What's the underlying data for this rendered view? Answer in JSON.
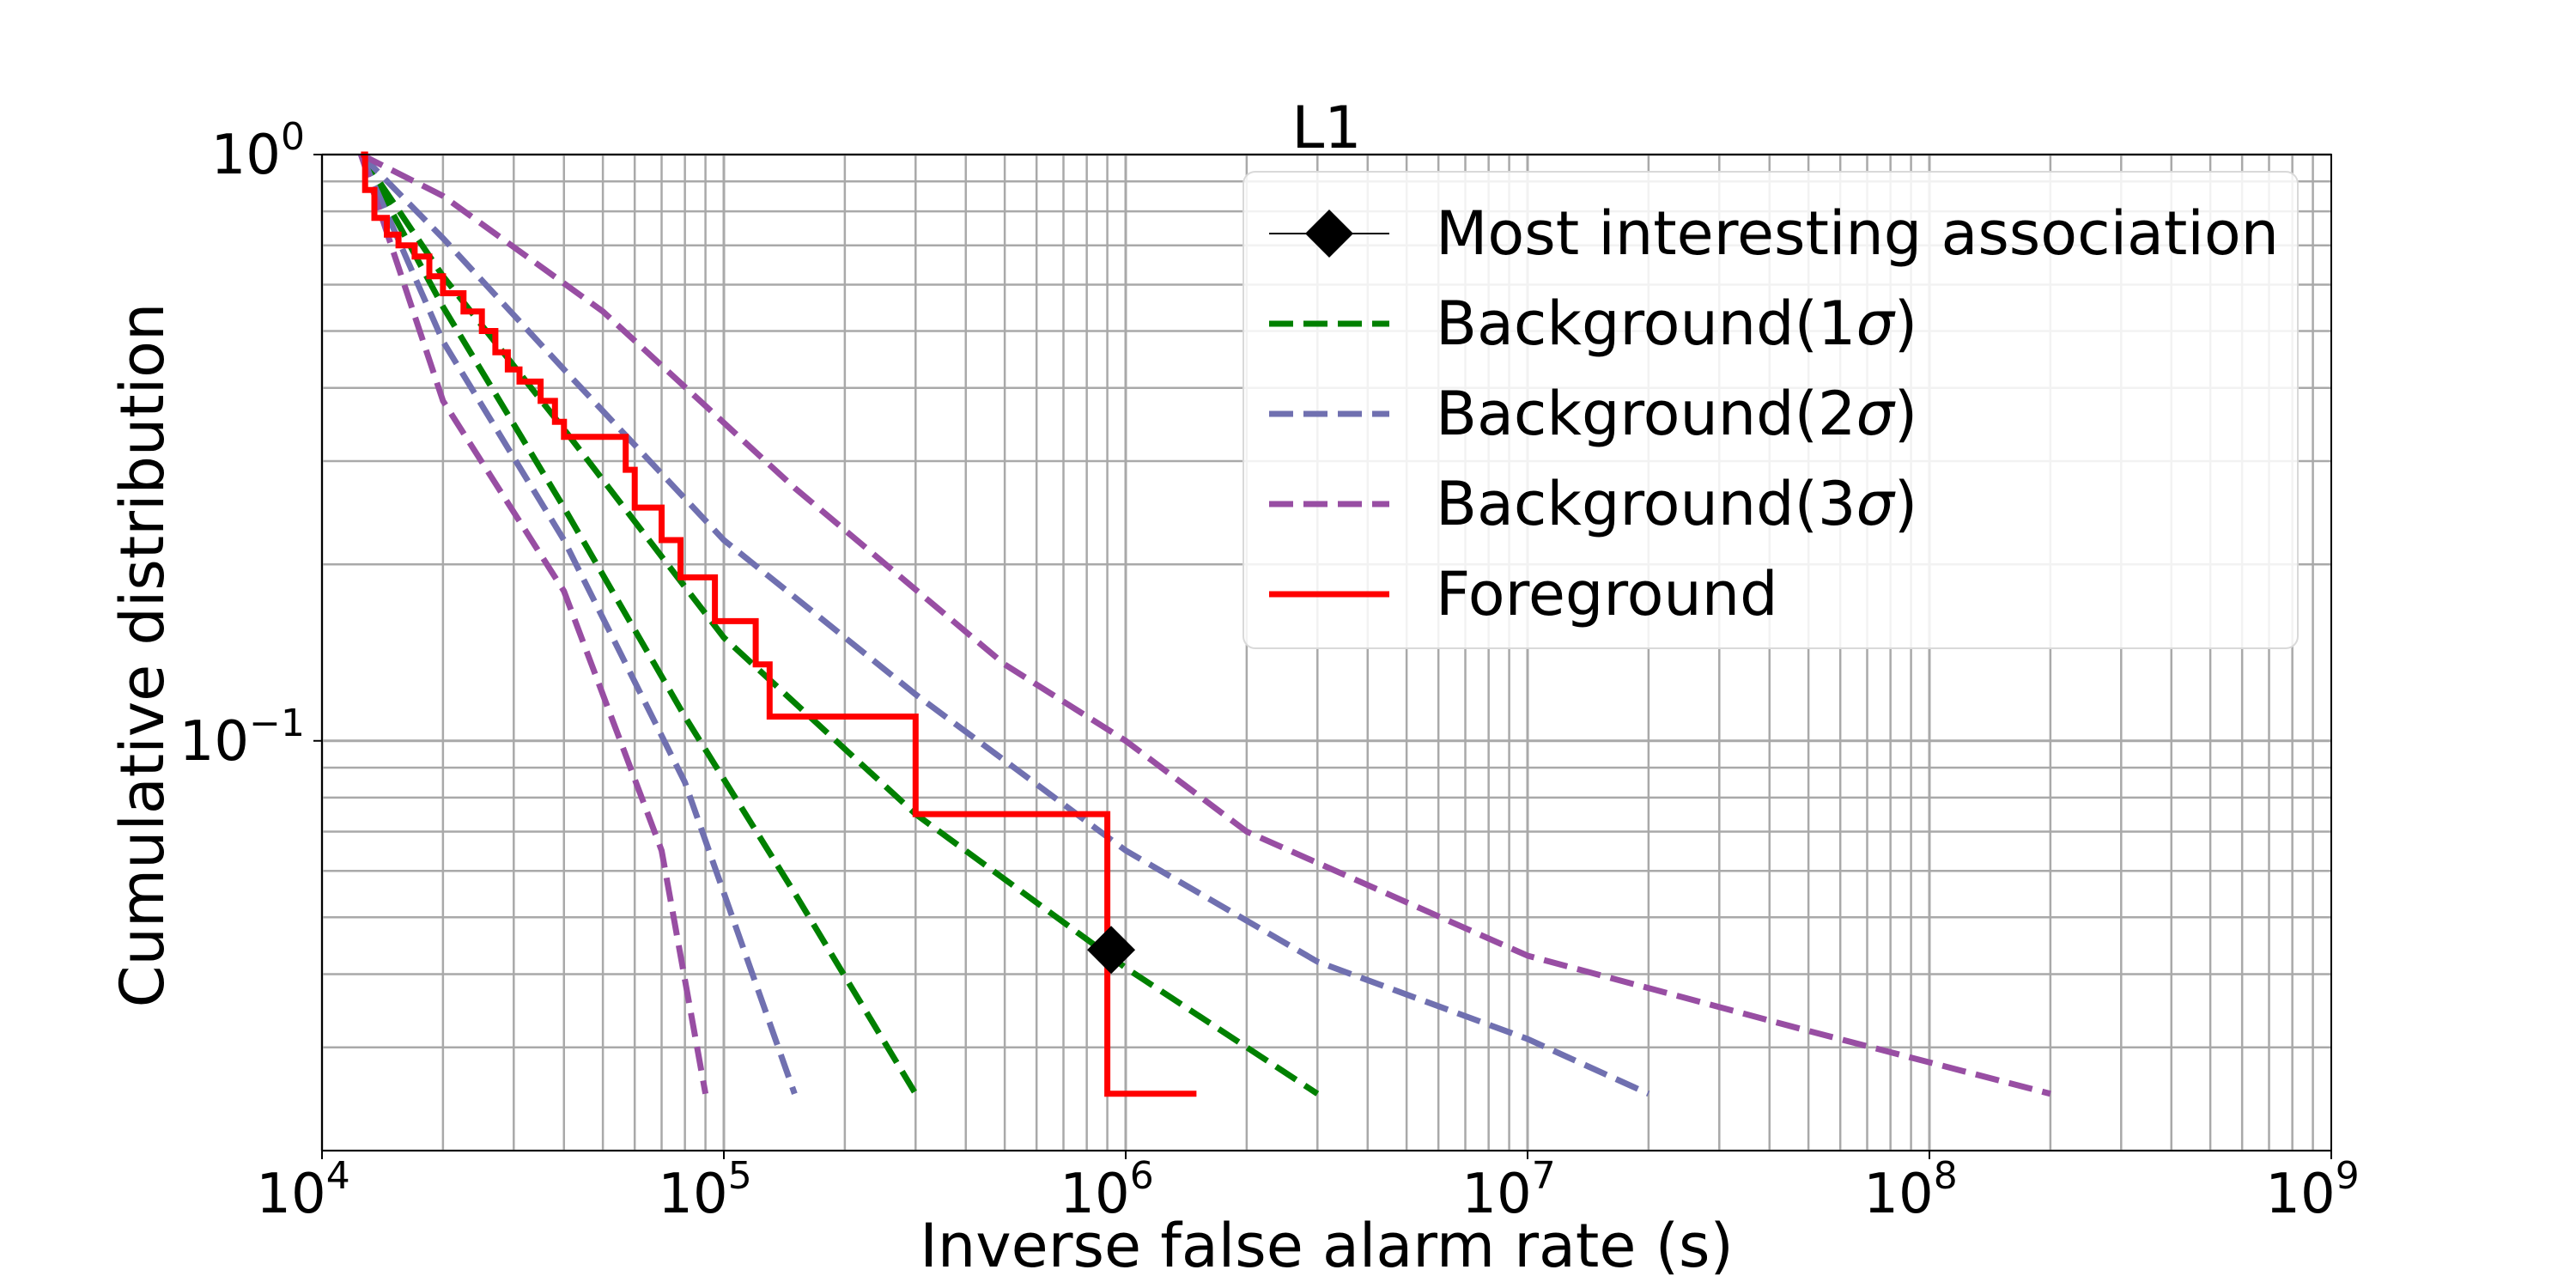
{
  "chart_data": {
    "type": "line",
    "title": "L1",
    "xlabel": "Inverse false alarm rate (s)",
    "ylabel": "Cumulative distribution",
    "x_scale": "log",
    "y_scale": "log",
    "xlim": [
      10000,
      1000000000
    ],
    "ylim": [
      0.02,
      1.0
    ],
    "grid": true,
    "grid_color": "#a9a9a9",
    "legend_position": "top-right",
    "x_ticks": [
      {
        "value": 10000,
        "base": "10",
        "exp": "4"
      },
      {
        "value": 100000,
        "base": "10",
        "exp": "5"
      },
      {
        "value": 1000000,
        "base": "10",
        "exp": "6"
      },
      {
        "value": 10000000,
        "base": "10",
        "exp": "7"
      },
      {
        "value": 100000000,
        "base": "10",
        "exp": "8"
      },
      {
        "value": 1000000000,
        "base": "10",
        "exp": "9"
      }
    ],
    "y_ticks": [
      {
        "value": 1.0,
        "base": "10",
        "exp": "0"
      },
      {
        "value": 0.1,
        "base": "10",
        "exp": "−1"
      }
    ],
    "legend": [
      {
        "key": "marker",
        "label": "Most interesting association",
        "sigma": "",
        "label_after": ""
      },
      {
        "key": "bg1",
        "label": "Background(1",
        "sigma": "σ",
        "label_after": ")"
      },
      {
        "key": "bg2",
        "label": "Background(2",
        "sigma": "σ",
        "label_after": ")"
      },
      {
        "key": "bg3",
        "label": "Background(3",
        "sigma": "σ",
        "label_after": ")"
      },
      {
        "key": "fg",
        "label": "Foreground",
        "sigma": "",
        "label_after": ""
      }
    ],
    "series": [
      {
        "key": "bg1_upper",
        "legend_key": "bg1",
        "color": "#008000",
        "style": "dashed",
        "points": [
          [
            12500,
            1.0
          ],
          [
            20000,
            0.62
          ],
          [
            40000,
            0.34
          ],
          [
            100000,
            0.15
          ],
          [
            300000,
            0.075
          ],
          [
            1000000,
            0.041
          ],
          [
            3000000,
            0.025
          ]
        ]
      },
      {
        "key": "bg1_lower",
        "legend_key": "bg1",
        "color": "#008000",
        "style": "dashed",
        "points": [
          [
            12500,
            1.0
          ],
          [
            20000,
            0.55
          ],
          [
            40000,
            0.25
          ],
          [
            80000,
            0.11
          ],
          [
            150000,
            0.055
          ],
          [
            300000,
            0.025
          ]
        ]
      },
      {
        "key": "bg2_upper",
        "legend_key": "bg2",
        "color": "#7070b0",
        "style": "dashed",
        "points": [
          [
            12500,
            1.0
          ],
          [
            20000,
            0.72
          ],
          [
            40000,
            0.43
          ],
          [
            100000,
            0.22
          ],
          [
            300000,
            0.12
          ],
          [
            1000000,
            0.065
          ],
          [
            3000000,
            0.042
          ],
          [
            10000000,
            0.031
          ],
          [
            20000000,
            0.025
          ]
        ]
      },
      {
        "key": "bg2_lower",
        "legend_key": "bg2",
        "color": "#7070b0",
        "style": "dashed",
        "points": [
          [
            12500,
            1.0
          ],
          [
            20000,
            0.48
          ],
          [
            40000,
            0.22
          ],
          [
            80000,
            0.085
          ],
          [
            150000,
            0.025
          ]
        ]
      },
      {
        "key": "bg3_upper",
        "legend_key": "bg3",
        "color": "#984ea3",
        "style": "dashed",
        "points": [
          [
            12500,
            1.0
          ],
          [
            20000,
            0.85
          ],
          [
            50000,
            0.54
          ],
          [
            150000,
            0.27
          ],
          [
            500000,
            0.135
          ],
          [
            1000000,
            0.1
          ],
          [
            2000000,
            0.07
          ],
          [
            10000000,
            0.043
          ],
          [
            50000000,
            0.032
          ],
          [
            200000000,
            0.025
          ]
        ]
      },
      {
        "key": "bg3_lower",
        "legend_key": "bg3",
        "color": "#984ea3",
        "style": "dashed",
        "points": [
          [
            12500,
            1.0
          ],
          [
            20000,
            0.38
          ],
          [
            40000,
            0.18
          ],
          [
            70000,
            0.065
          ],
          [
            90000,
            0.025
          ]
        ]
      },
      {
        "key": "foreground",
        "legend_key": "fg",
        "color": "#ff0000",
        "style": "step",
        "points": [
          [
            12500,
            1.0
          ],
          [
            12800,
            0.87
          ],
          [
            13500,
            0.78
          ],
          [
            14500,
            0.73
          ],
          [
            15500,
            0.7
          ],
          [
            17000,
            0.67
          ],
          [
            18500,
            0.62
          ],
          [
            20000,
            0.58
          ],
          [
            22500,
            0.54
          ],
          [
            25000,
            0.5
          ],
          [
            27000,
            0.46
          ],
          [
            29000,
            0.43
          ],
          [
            31000,
            0.41
          ],
          [
            35000,
            0.38
          ],
          [
            38000,
            0.35
          ],
          [
            40000,
            0.33
          ],
          [
            57000,
            0.29
          ],
          [
            60000,
            0.25
          ],
          [
            70000,
            0.22
          ],
          [
            78000,
            0.19
          ],
          [
            95000,
            0.16
          ],
          [
            120000,
            0.135
          ],
          [
            130000,
            0.11
          ],
          [
            300000,
            0.075
          ],
          [
            900000,
            0.045
          ],
          [
            900000,
            0.025
          ],
          [
            1500000,
            0.025
          ]
        ]
      }
    ],
    "markers": [
      {
        "legend_key": "marker",
        "shape": "diamond",
        "color": "#000000",
        "x": 920000,
        "y": 0.044
      }
    ]
  }
}
